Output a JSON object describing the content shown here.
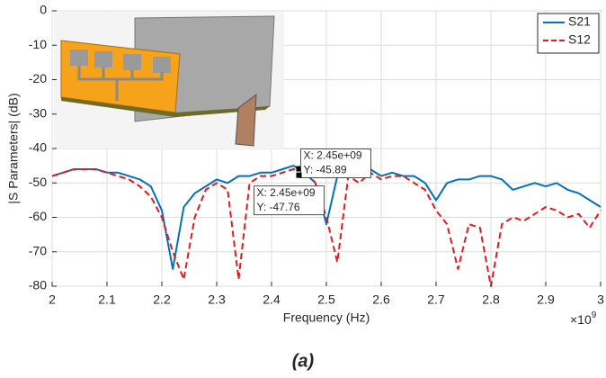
{
  "chart_data": {
    "type": "line",
    "xlabel": "Frequency (Hz)",
    "ylabel": "|S Parameters| (dB)",
    "x_multiplier": "×10",
    "x_multiplier_exponent": "9",
    "caption": "(a)",
    "x": [
      2.0,
      2.02,
      2.04,
      2.06,
      2.08,
      2.1,
      2.12,
      2.14,
      2.16,
      2.18,
      2.2,
      2.22,
      2.24,
      2.26,
      2.28,
      2.3,
      2.32,
      2.34,
      2.36,
      2.38,
      2.4,
      2.42,
      2.44,
      2.46,
      2.48,
      2.5,
      2.52,
      2.54,
      2.56,
      2.58,
      2.6,
      2.62,
      2.64,
      2.66,
      2.68,
      2.7,
      2.72,
      2.74,
      2.76,
      2.78,
      2.8,
      2.82,
      2.84,
      2.86,
      2.88,
      2.9,
      2.92,
      2.94,
      2.96,
      2.98,
      3.0
    ],
    "series": [
      {
        "name": "S21",
        "color": "#0072bd",
        "dash": false,
        "values": [
          -48,
          -47,
          -46,
          -46,
          -46,
          -47,
          -47,
          -48,
          -49,
          -51,
          -58,
          -75,
          -57,
          -53,
          -51,
          -49,
          -50,
          -48,
          -48,
          -47,
          -47,
          -46,
          -45,
          -47,
          -50,
          -62,
          -48,
          -47,
          -47,
          -46,
          -48,
          -47,
          -48,
          -48,
          -50,
          -55,
          -50,
          -49,
          -49,
          -48,
          -48,
          -49,
          -52,
          -51,
          -50,
          -51,
          -50,
          -52,
          -53,
          -55,
          -57
        ]
      },
      {
        "name": "S12",
        "color": "#e8191e",
        "dash": true,
        "values": [
          -48,
          -47,
          -46,
          -46,
          -46,
          -47,
          -48,
          -49,
          -51,
          -54,
          -60,
          -70,
          -78,
          -60,
          -52,
          -50,
          -52,
          -78,
          -50,
          -48,
          -48,
          -47,
          -46,
          -46,
          -50,
          -60,
          -73,
          -48,
          -50,
          -47,
          -49,
          -48,
          -48,
          -50,
          -52,
          -58,
          -62,
          -75,
          -62,
          -63,
          -80,
          -62,
          -60,
          -61,
          -59,
          -57,
          -58,
          -60,
          -59,
          -63,
          -58
        ]
      }
    ],
    "xlim": [
      2,
      3
    ],
    "ylim": [
      -80,
      0
    ],
    "xticks": [
      2,
      2.1,
      2.2,
      2.3,
      2.4,
      2.5,
      2.6,
      2.7,
      2.8,
      2.9,
      3
    ],
    "yticks": [
      -80,
      -70,
      -60,
      -50,
      -40,
      -30,
      -20,
      -10,
      0
    ],
    "grid": true,
    "legend": "upper right",
    "annotations": [
      {
        "x": 2.45,
        "y": -45.89,
        "lines": [
          "X: 2.45e+09",
          "Y: -45.89"
        ]
      },
      {
        "x": 2.45,
        "y": -47.76,
        "lines": [
          "X: 2.45e+09",
          "Y: -47.76"
        ]
      }
    ]
  }
}
